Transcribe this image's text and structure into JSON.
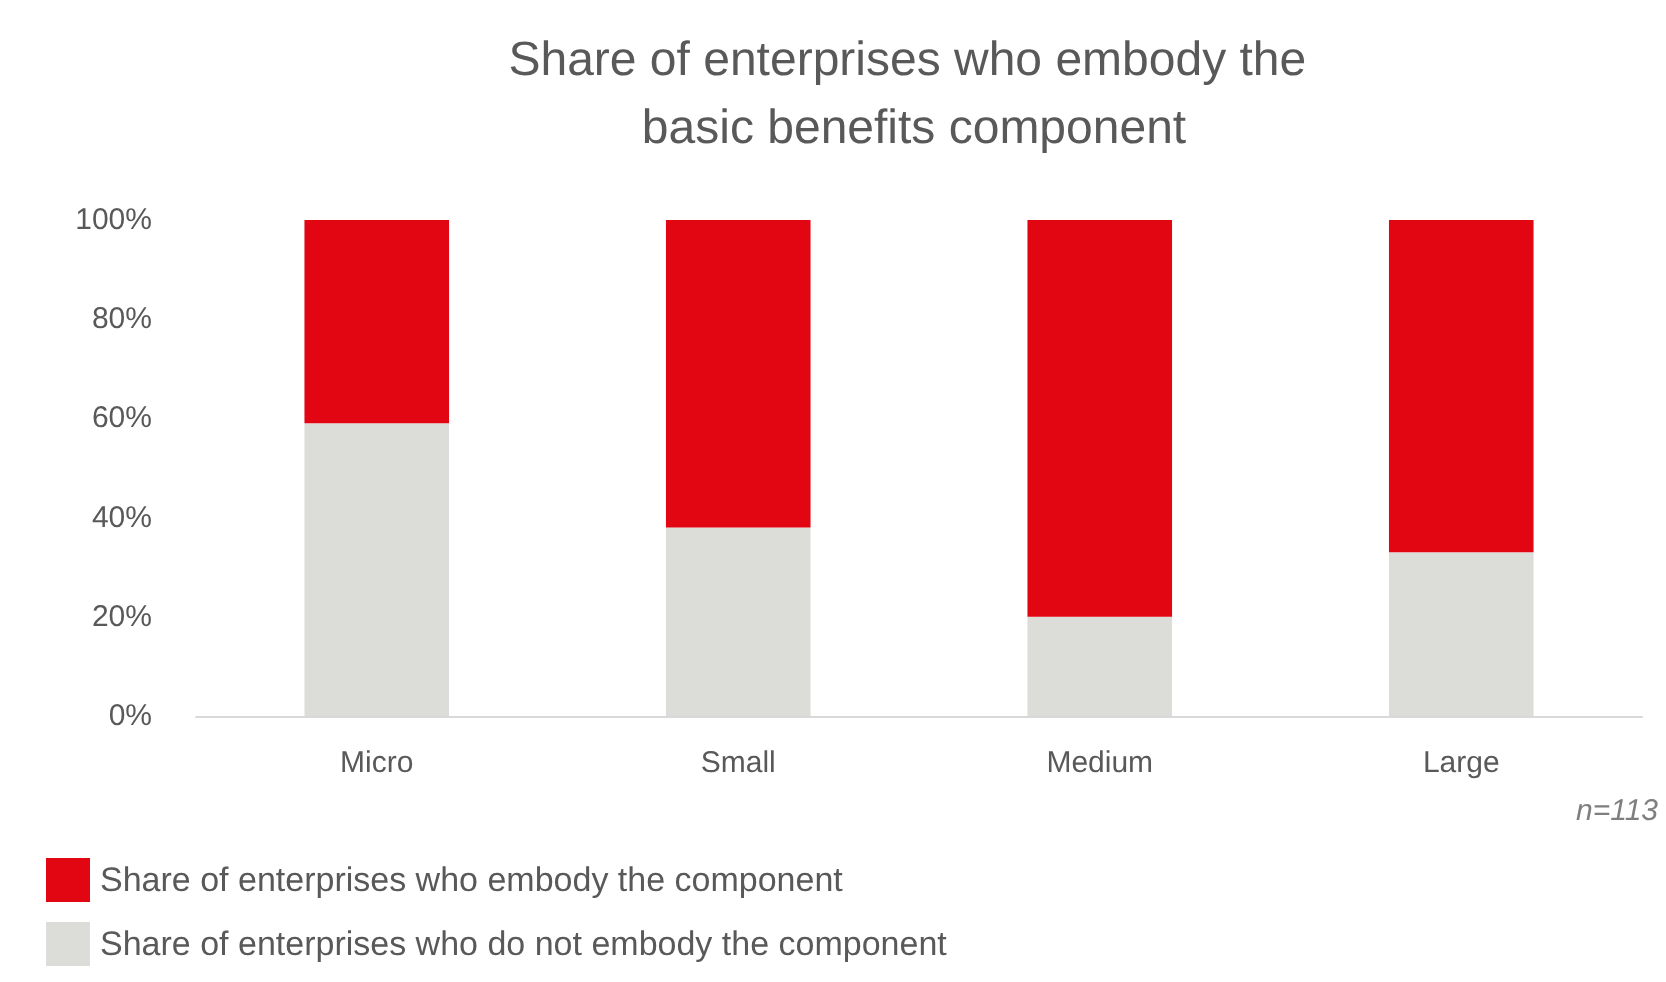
{
  "chart_data": {
    "type": "bar",
    "title": "Share of enterprises who embody the basic benefits component",
    "categories": [
      "Micro",
      "Small",
      "Medium",
      "Large"
    ],
    "series": [
      {
        "name": "Share of enterprises who do not embody the component",
        "color": "#dcdcd8",
        "values": [
          59,
          38,
          20,
          33
        ]
      },
      {
        "name": "Share of enterprises who embody the component",
        "color": "#e20613",
        "values": [
          41,
          62,
          80,
          67
        ]
      }
    ],
    "stacked": true,
    "ylim": [
      0,
      100
    ],
    "yticks": [
      {
        "value": 0,
        "label": "0%"
      },
      {
        "value": 20,
        "label": "20%"
      },
      {
        "value": 40,
        "label": "40%"
      },
      {
        "value": 60,
        "label": "60%"
      },
      {
        "value": 80,
        "label": "80%"
      },
      {
        "value": 100,
        "label": "100%"
      }
    ],
    "grid": false,
    "legend": "bottom left",
    "annotations": [
      "n=113"
    ]
  }
}
